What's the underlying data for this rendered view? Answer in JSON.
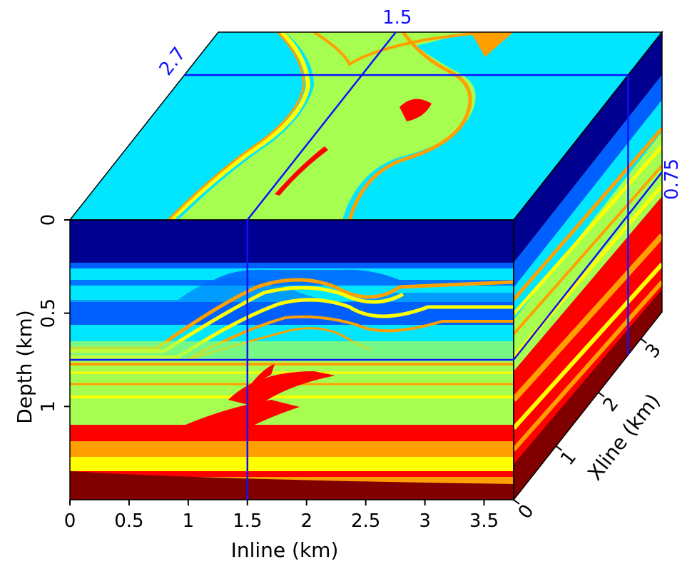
{
  "chart_data": {
    "type": "heatmap",
    "axes": {
      "inline": {
        "label": "Inline (km)",
        "ticks": [
          "0",
          "0.5",
          "1",
          "1.5",
          "2",
          "2.5",
          "3",
          "3.5"
        ],
        "range": [
          0,
          3.75
        ]
      },
      "depth": {
        "label": "Depth (km)",
        "ticks": [
          "0",
          "0.5",
          "1"
        ],
        "range": [
          0,
          1.5
        ]
      },
      "xline": {
        "label": "Xline (km)",
        "ticks": [
          "0",
          "1",
          "2",
          "3"
        ],
        "range": [
          0,
          3.5
        ]
      }
    },
    "slices": {
      "inline": "1.5",
      "xline": "2.7",
      "depth": "0.75"
    },
    "colormap": [
      "#800000",
      "#ff0000",
      "#ffa000",
      "#ffff00",
      "#a6ff50",
      "#00e6ff",
      "#0060ff",
      "#000090"
    ]
  }
}
